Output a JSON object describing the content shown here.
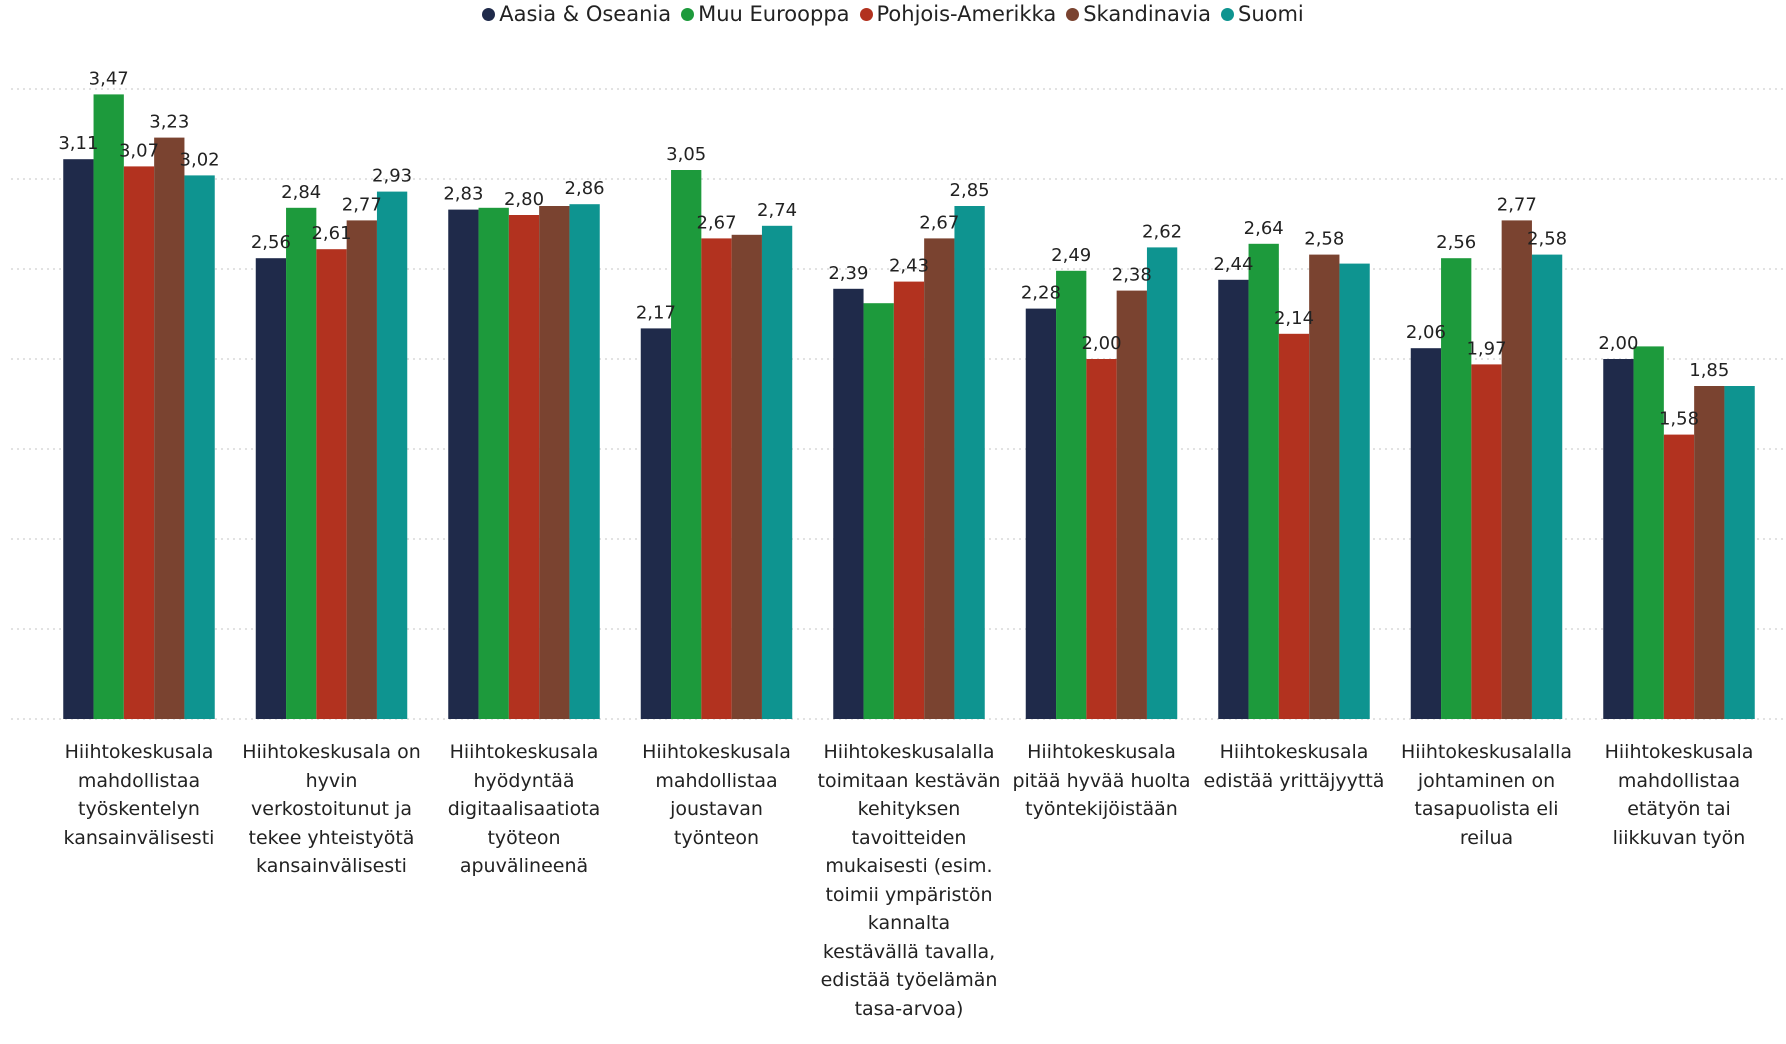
{
  "chart_data": {
    "type": "bar",
    "categories": [
      "Hiihtokeskusala mahdollistaa työskentelyn kansainvälisesti",
      "Hiihtokeskusala on hyvin verkostoitunut ja tekee yhteistyötä kansainvälisesti",
      "Hiihtokeskusala hyödyntää digitaalisaatiota työteon apuvälineenä",
      "Hiihtokeskusala mahdollistaa joustavan työnteon",
      "Hiihtokeskusalalla toimitaan kestävän kehityksen tavoitteiden mukaisesti (esim. toimii ympäristön kannalta kestävällä tavalla, edistää työelämän tasa-arvoa)",
      "Hiihtokeskusala pitää hyvää huolta työntekijöistään",
      "Hiihtokeskusala edistää yrittäjyyttä",
      "Hiihtokeskusalalla johtaminen on tasapuolista eli reilua",
      "Hiihtokeskusala mahdollistaa etätyön tai liikkuvan työn"
    ],
    "series": [
      {
        "name": "Aasia & Oseania",
        "color": "#1f2a4a",
        "values": [
          3.11,
          2.56,
          2.83,
          2.17,
          2.39,
          2.28,
          2.44,
          2.06,
          2.0
        ],
        "value_labels": [
          "3,11",
          "2,56",
          "2,83",
          "2,17",
          "2,39",
          "2,28",
          "2,44",
          "2,06",
          "2,00"
        ]
      },
      {
        "name": "Muu Eurooppa",
        "color": "#1d9a3c",
        "values": [
          3.47,
          2.84,
          2.84,
          3.05,
          2.31,
          2.49,
          2.64,
          2.56,
          2.07
        ],
        "value_labels": [
          "3,47",
          "2,84",
          null,
          "3,05",
          null,
          "2,49",
          "2,64",
          "2,56",
          null
        ]
      },
      {
        "name": "Pohjois-Amerikka",
        "color": "#b2321f",
        "values": [
          3.07,
          2.61,
          2.8,
          2.67,
          2.43,
          2.0,
          2.14,
          1.97,
          1.58
        ],
        "value_labels": [
          "3,07",
          "2,61",
          "2,80",
          "2,67",
          "2,43",
          "2,00",
          "2,14",
          "1,97",
          "1,58"
        ]
      },
      {
        "name": "Skandinavia",
        "color": "#7a4330",
        "values": [
          3.23,
          2.77,
          2.85,
          2.69,
          2.67,
          2.38,
          2.58,
          2.77,
          1.85
        ],
        "value_labels": [
          "3,23",
          "2,77",
          null,
          null,
          "2,67",
          "2,38",
          "2,58",
          "2,77",
          "1,85"
        ]
      },
      {
        "name": "Suomi",
        "color": "#0e9490",
        "values": [
          3.02,
          2.93,
          2.86,
          2.74,
          2.85,
          2.62,
          2.53,
          2.58,
          1.85
        ],
        "value_labels": [
          "3,02",
          "2,93",
          "2,86",
          "2,74",
          "2,85",
          "2,62",
          null,
          "2,58",
          null
        ]
      }
    ],
    "ylim": [
      0,
      3.5
    ],
    "yticks": [
      0,
      0.5,
      1,
      1.5,
      2,
      2.5,
      3,
      3.5
    ],
    "grid": true,
    "legend": "top"
  }
}
